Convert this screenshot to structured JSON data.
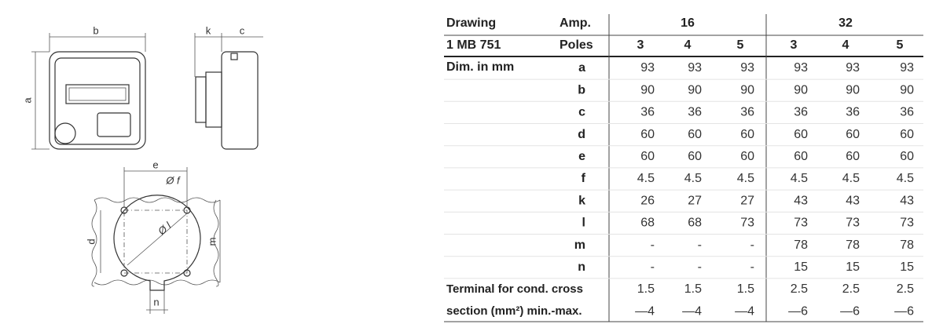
{
  "drawing": {
    "labels": {
      "b": "b",
      "k": "k",
      "c": "c",
      "a": "a",
      "e": "e",
      "f": "Ø f",
      "l": "Ø l",
      "d": "d",
      "m": "m",
      "n": "n"
    }
  },
  "table": {
    "header": {
      "row1": [
        "Drawing",
        "Amp.",
        "16",
        "32"
      ],
      "row2": [
        "1 MB 751",
        "Poles",
        "3",
        "4",
        "5",
        "3",
        "4",
        "5"
      ]
    },
    "section_label": "Dim. in mm",
    "rows": [
      [
        "a",
        "93",
        "93",
        "93",
        "93",
        "93",
        "93"
      ],
      [
        "b",
        "90",
        "90",
        "90",
        "90",
        "90",
        "90"
      ],
      [
        "c",
        "36",
        "36",
        "36",
        "36",
        "36",
        "36"
      ],
      [
        "d",
        "60",
        "60",
        "60",
        "60",
        "60",
        "60"
      ],
      [
        "e",
        "60",
        "60",
        "60",
        "60",
        "60",
        "60"
      ],
      [
        "f",
        "4.5",
        "4.5",
        "4.5",
        "4.5",
        "4.5",
        "4.5"
      ],
      [
        "k",
        "26",
        "27",
        "27",
        "43",
        "43",
        "43"
      ],
      [
        "l",
        "68",
        "68",
        "73",
        "73",
        "73",
        "73"
      ],
      [
        "m",
        "-",
        "-",
        "-",
        "78",
        "78",
        "78"
      ],
      [
        "n",
        "-",
        "-",
        "-",
        "15",
        "15",
        "15"
      ]
    ],
    "terminal": {
      "label": [
        "Terminal for cond. cross",
        "section (mm²) min.-max."
      ],
      "min": [
        "1.5",
        "1.5",
        "1.5",
        "2.5",
        "2.5",
        "2.5"
      ],
      "max": [
        "—4",
        "—4",
        "—4",
        "—6",
        "—6",
        "—6"
      ]
    }
  }
}
